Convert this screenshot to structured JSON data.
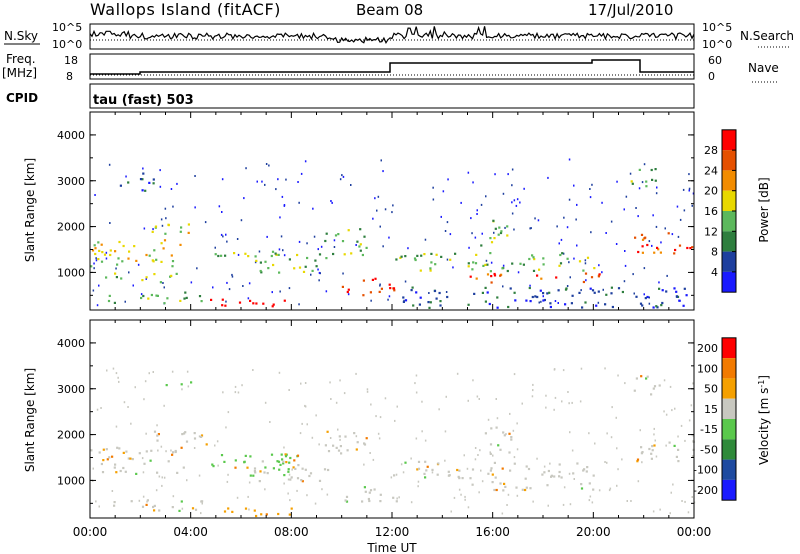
{
  "header": {
    "station": "Wallops Island (fitACF)",
    "beam": "Beam 08",
    "date": "17/Jul/2010"
  },
  "top_panels": {
    "nsky_label": "N.Sky",
    "nsky_ticks": [
      "10^5",
      "10^0"
    ],
    "nsearch_label": "N.Search",
    "nsearch_ticks": [
      "10^5",
      "10^0"
    ],
    "freq_label": "Freq.",
    "freq_unit": "[MHz]",
    "freq_ticks": [
      "18",
      "8"
    ],
    "nave_label": "Nave",
    "nave_ticks": [
      "60",
      "0"
    ],
    "cpid_label": "CPID",
    "cpid_value": "tau (fast) 503"
  },
  "chart_data": [
    {
      "type": "heatmap",
      "name": "power-panel",
      "xlabel": "",
      "ylabel": "Slant Range [km]",
      "x_range": [
        0,
        24
      ],
      "ylim": [
        180,
        4500
      ],
      "yticks": [
        "1000",
        "2000",
        "3000",
        "4000"
      ],
      "colorbar": {
        "label": "Power [dB]",
        "ticks": [
          "4",
          "8",
          "12",
          "16",
          "20",
          "24",
          "28"
        ],
        "colors": [
          "#1a1aff",
          "#1e3f9e",
          "#2e7e3e",
          "#5cb85c",
          "#e8d800",
          "#f28c00",
          "#e55000",
          "#ff0000"
        ]
      },
      "features": [
        {
          "t0": 0.0,
          "t1": 3.8,
          "r0": 1150,
          "r1": 1750,
          "level": 4
        },
        {
          "t0": 0.1,
          "t1": 3.5,
          "r0": 800,
          "r1": 1000,
          "level": 3
        },
        {
          "t0": 0.5,
          "t1": 4.5,
          "r0": 350,
          "r1": 600,
          "level": 3
        },
        {
          "t0": 4.5,
          "t1": 8.0,
          "r0": 230,
          "r1": 440,
          "level": 7
        },
        {
          "t0": 10.0,
          "t1": 12.2,
          "r0": 500,
          "r1": 900,
          "level": 7
        },
        {
          "t0": 2.0,
          "t1": 4.0,
          "r0": 1800,
          "r1": 2100,
          "level": 4
        },
        {
          "t0": 4.8,
          "t1": 7.8,
          "r0": 1300,
          "r1": 1500,
          "level": 3
        },
        {
          "t0": 6.5,
          "t1": 9.5,
          "r0": 1000,
          "r1": 1450,
          "level": 3
        },
        {
          "t0": 9.3,
          "t1": 11.0,
          "r0": 1400,
          "r1": 2000,
          "level": 3
        },
        {
          "t0": 12.0,
          "t1": 20.0,
          "r0": 1050,
          "r1": 1450,
          "level": 3
        },
        {
          "t0": 15.0,
          "t1": 18.5,
          "r0": 800,
          "r1": 1000,
          "level": 6
        },
        {
          "t0": 18.8,
          "t1": 20.5,
          "r0": 800,
          "r1": 1000,
          "level": 6
        },
        {
          "t0": 15.5,
          "t1": 16.8,
          "r0": 1600,
          "r1": 2200,
          "level": 3
        },
        {
          "t0": 21.6,
          "t1": 24.0,
          "r0": 1400,
          "r1": 1900,
          "level": 6
        },
        {
          "t0": 21.3,
          "t1": 22.6,
          "r0": 2900,
          "r1": 3300,
          "level": 3
        },
        {
          "t0": 1.0,
          "t1": 2.5,
          "r0": 2800,
          "r1": 3200,
          "level": 1
        },
        {
          "t0": 12.2,
          "t1": 24.0,
          "r0": 250,
          "r1": 700,
          "level": 1
        }
      ]
    },
    {
      "type": "heatmap",
      "name": "velocity-panel",
      "xlabel": "Time UT",
      "ylabel": "Slant Range [km]",
      "x_range": [
        0,
        24
      ],
      "ylim": [
        180,
        4500
      ],
      "xticks": [
        "00:00",
        "04:00",
        "08:00",
        "12:00",
        "16:00",
        "20:00",
        "00:00"
      ],
      "yticks": [
        "1000",
        "2000",
        "3000",
        "4000"
      ],
      "colorbar": {
        "label": "Velocity [m s^-1]",
        "ticks": [
          "200",
          "100",
          "50",
          "15",
          "-15",
          "-50",
          "-100",
          "-200"
        ],
        "colors": [
          "#1a1aff",
          "#1e4aa0",
          "#2f8a3a",
          "#5ac84c",
          "#c8c8c0",
          "#f5a000",
          "#f27a00",
          "#ff0000"
        ]
      },
      "features": [
        {
          "t0": 0.0,
          "t1": 3.8,
          "r0": 1150,
          "r1": 1750,
          "level": 4
        },
        {
          "t0": 0.5,
          "t1": 4.5,
          "r0": 350,
          "r1": 600,
          "level": 4
        },
        {
          "t0": 2.5,
          "t1": 5.0,
          "r0": 1800,
          "r1": 2100,
          "level": 4
        },
        {
          "t0": 4.8,
          "t1": 8.5,
          "r0": 1300,
          "r1": 1600,
          "level": 3
        },
        {
          "t0": 5.0,
          "t1": 8.0,
          "r0": 230,
          "r1": 440,
          "level": 5
        },
        {
          "t0": 6.5,
          "t1": 9.5,
          "r0": 1000,
          "r1": 1450,
          "level": 4
        },
        {
          "t0": 10.0,
          "t1": 12.2,
          "r0": 500,
          "r1": 900,
          "level": 4
        },
        {
          "t0": 9.3,
          "t1": 11.0,
          "r0": 1500,
          "r1": 2100,
          "level": 4
        },
        {
          "t0": 12.0,
          "t1": 20.0,
          "r0": 1050,
          "r1": 1450,
          "level": 4
        },
        {
          "t0": 15.0,
          "t1": 20.5,
          "r0": 800,
          "r1": 1000,
          "level": 4
        },
        {
          "t0": 15.5,
          "t1": 16.8,
          "r0": 1600,
          "r1": 2200,
          "level": 4
        },
        {
          "t0": 21.6,
          "t1": 24.0,
          "r0": 1400,
          "r1": 1900,
          "level": 4
        },
        {
          "t0": 21.3,
          "t1": 22.6,
          "r0": 2900,
          "r1": 3300,
          "level": 4
        },
        {
          "t0": 3.0,
          "t1": 4.0,
          "r0": 3000,
          "r1": 3200,
          "level": 3
        },
        {
          "t0": 6.0,
          "t1": 8.0,
          "r0": 1100,
          "r1": 1600,
          "level": 3
        }
      ]
    }
  ]
}
